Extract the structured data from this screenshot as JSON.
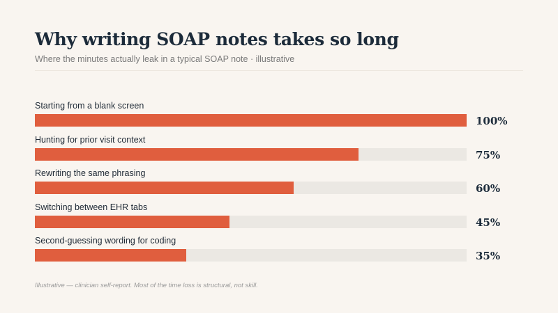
{
  "header": {
    "title": "Why writing SOAP notes takes so long",
    "subtitle": "Where the minutes actually leak in a typical SOAP note · illustrative"
  },
  "footnote": "Illustrative — clinician self-report. Most of the time loss is structural, not skill.",
  "colors": {
    "background": "#f9f5f0",
    "bar": "#e05e3e",
    "track": "#ebe8e3",
    "title": "#1c2b3a"
  },
  "chart_data": {
    "type": "bar",
    "orientation": "horizontal",
    "categories": [
      "Starting from a blank screen",
      "Hunting for prior visit context",
      "Rewriting the same phrasing",
      "Switching between EHR tabs",
      "Second-guessing wording for coding"
    ],
    "values": [
      100,
      75,
      60,
      45,
      35
    ],
    "value_labels": [
      "100%",
      "75%",
      "60%",
      "45%",
      "35%"
    ],
    "xlim": [
      0,
      100
    ],
    "title": "Why writing SOAP notes takes so long",
    "xlabel": "",
    "ylabel": "",
    "grid": false,
    "legend": "none"
  }
}
